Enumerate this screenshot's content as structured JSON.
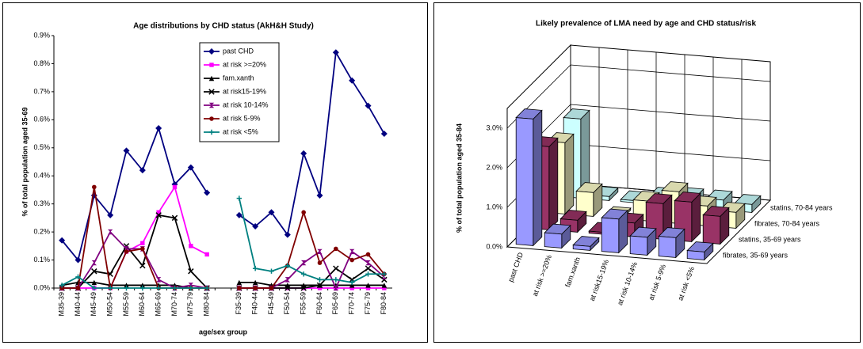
{
  "chart_data": [
    {
      "type": "line",
      "title": "Age distributions by CHD status (AkH&H Study)",
      "xlabel": "age/sex group",
      "ylabel": "% of total population aged 35-69",
      "categories": [
        "M35-39",
        "M40-44",
        "M45-49",
        "M50-54",
        "M55-59",
        "M60-64",
        "M65-69",
        "M70-74",
        "M75-79",
        "M80-84",
        null,
        "F35-39",
        "F40-44",
        "F45-49",
        "F50-54",
        "F55-59",
        "F60-64",
        "F65-69",
        "F70-74",
        "F75-79",
        "F80-84"
      ],
      "ylim": [
        0,
        0.9
      ],
      "yticks": [
        {
          "value": 0,
          "label": "0.0%"
        },
        {
          "value": 0.1,
          "label": "0.1%"
        },
        {
          "value": 0.2,
          "label": "0.2%"
        },
        {
          "value": 0.3,
          "label": "0.3%"
        },
        {
          "value": 0.4,
          "label": "0.4%"
        },
        {
          "value": 0.5,
          "label": "0.5%"
        },
        {
          "value": 0.6,
          "label": "0.6%"
        },
        {
          "value": 0.7,
          "label": "0.7%"
        },
        {
          "value": 0.8,
          "label": "0.8%"
        },
        {
          "value": 0.9,
          "label": "0.9%"
        }
      ],
      "legend": "top",
      "series": [
        {
          "name": "past CHD",
          "color": "#000080",
          "marker": "diamond",
          "values": [
            0.17,
            0.1,
            0.33,
            0.26,
            0.49,
            0.42,
            0.57,
            0.37,
            0.43,
            0.34,
            null,
            0.26,
            0.22,
            0.27,
            0.19,
            0.48,
            0.33,
            0.84,
            0.74,
            0.65,
            0.55
          ]
        },
        {
          "name": "at risk >=20%",
          "color": "#ff00ff",
          "marker": "square",
          "values": [
            0,
            0,
            0,
            0,
            0.13,
            0.16,
            0.27,
            0.36,
            0.15,
            0.12,
            null,
            0,
            0,
            0,
            0,
            0,
            0,
            0,
            0,
            0,
            0
          ]
        },
        {
          "name": "fam.xanth",
          "color": "#000000",
          "marker": "triangle",
          "values": [
            0.01,
            0.02,
            0.02,
            0.01,
            0.01,
            0.01,
            0.01,
            0.01,
            0,
            0,
            null,
            0.02,
            0.02,
            0.01,
            0.01,
            0.01,
            0.01,
            0.01,
            0.01,
            0.01,
            0.01
          ]
        },
        {
          "name": "at risk15-19%",
          "color": "#000000",
          "marker": "x",
          "values": [
            0,
            0,
            0.06,
            0.05,
            0.15,
            0.08,
            0.26,
            0.25,
            0.06,
            0,
            null,
            0,
            0,
            0,
            0,
            0,
            0.01,
            0.07,
            0.03,
            0.07,
            0.03
          ]
        },
        {
          "name": "at risk 10-14%",
          "color": "#800080",
          "marker": "hourglass",
          "values": [
            0,
            0,
            0.09,
            0.2,
            0.14,
            0.14,
            0.03,
            0,
            0.01,
            0,
            null,
            0,
            0,
            0,
            0.03,
            0.09,
            0.13,
            0,
            0.13,
            0.09,
            0.04
          ]
        },
        {
          "name": "at risk 5-9%",
          "color": "#800000",
          "marker": "circle",
          "values": [
            0,
            0,
            0.36,
            0,
            0.13,
            0.14,
            0,
            0,
            0,
            0,
            null,
            0,
            0,
            0,
            0.08,
            0.27,
            0.09,
            0.14,
            0.1,
            0.12,
            0.05
          ]
        },
        {
          "name": "at risk <5%",
          "color": "#008080",
          "marker": "plus",
          "values": [
            0.01,
            0.04,
            0,
            0,
            0,
            0,
            0,
            0,
            0,
            0,
            null,
            0.32,
            0.07,
            0.06,
            0.08,
            0.05,
            0.03,
            0.03,
            0.02,
            0.05,
            0.05
          ]
        }
      ]
    },
    {
      "type": "bar3d",
      "title": "Likely prevalence of LMA need by age and CHD status/risk",
      "ylabel": "% of total population aged 35-84",
      "categories": [
        "past CHD",
        "at risk >=20%",
        "fam.xanth",
        "at risk15-19%",
        "at risk 10-14%",
        "at risk 5-9%",
        "at risk <5%"
      ],
      "ylim": [
        0,
        3.5
      ],
      "yticks": [
        {
          "value": 0,
          "label": "0.0%"
        },
        {
          "value": 1,
          "label": "1.0%"
        },
        {
          "value": 2,
          "label": "2.0%"
        },
        {
          "value": 3,
          "label": "3.0%"
        }
      ],
      "series": [
        {
          "name": "fibrates, 35-69 years",
          "color": "#9999ff",
          "values": [
            3.2,
            0.35,
            0.1,
            0.85,
            0.45,
            0.5,
            0.2
          ]
        },
        {
          "name": "statins, 35-69 years",
          "color": "#993366",
          "values": [
            2.1,
            0.3,
            0.05,
            0.35,
            0.9,
            1.0,
            0.7
          ]
        },
        {
          "name": "fibrates, 70-84 years",
          "color": "#ffffcc",
          "values": [
            1.8,
            0.6,
            0.05,
            0.5,
            0.8,
            0.5,
            0.4
          ]
        },
        {
          "name": "statins, 70-84 years",
          "color": "#ccffff",
          "values": [
            2.0,
            0.1,
            0.05,
            0.2,
            0.25,
            0.25,
            0.2
          ]
        }
      ]
    }
  ]
}
